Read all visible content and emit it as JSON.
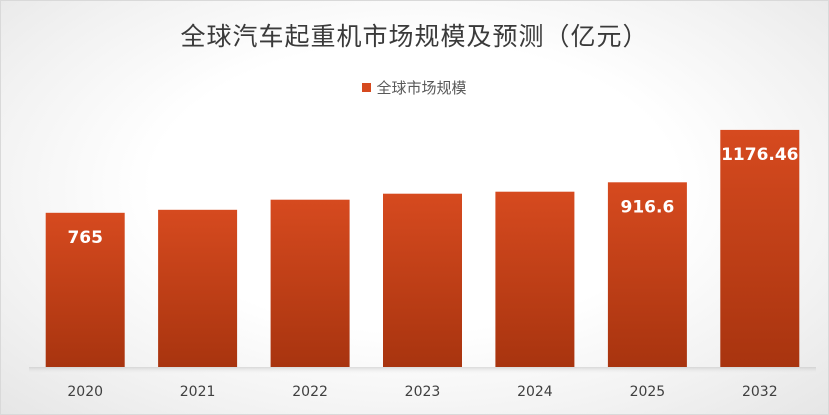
{
  "chart_data": {
    "type": "bar",
    "title": "全球汽车起重机市场规模及预测（亿元）",
    "categories": [
      "2020",
      "2021",
      "2022",
      "2023",
      "2024",
      "2025",
      "2032"
    ],
    "series": [
      {
        "name": "全球市场规模",
        "values": [
          765,
          780,
          830,
          860,
          870,
          916.6,
          1176.46
        ],
        "data_labels": [
          "765",
          "",
          "",
          "",
          "",
          "916.6",
          "1176.46"
        ]
      }
    ],
    "ylim": [
      0,
      1300
    ],
    "grid": false,
    "legend_position": "top",
    "xlabel": "",
    "ylabel": ""
  },
  "colors": {
    "bar_top": "#d64a1f",
    "bar_bottom": "#a8340f",
    "label_text": "#ffffff",
    "axis_text": "#404040"
  }
}
